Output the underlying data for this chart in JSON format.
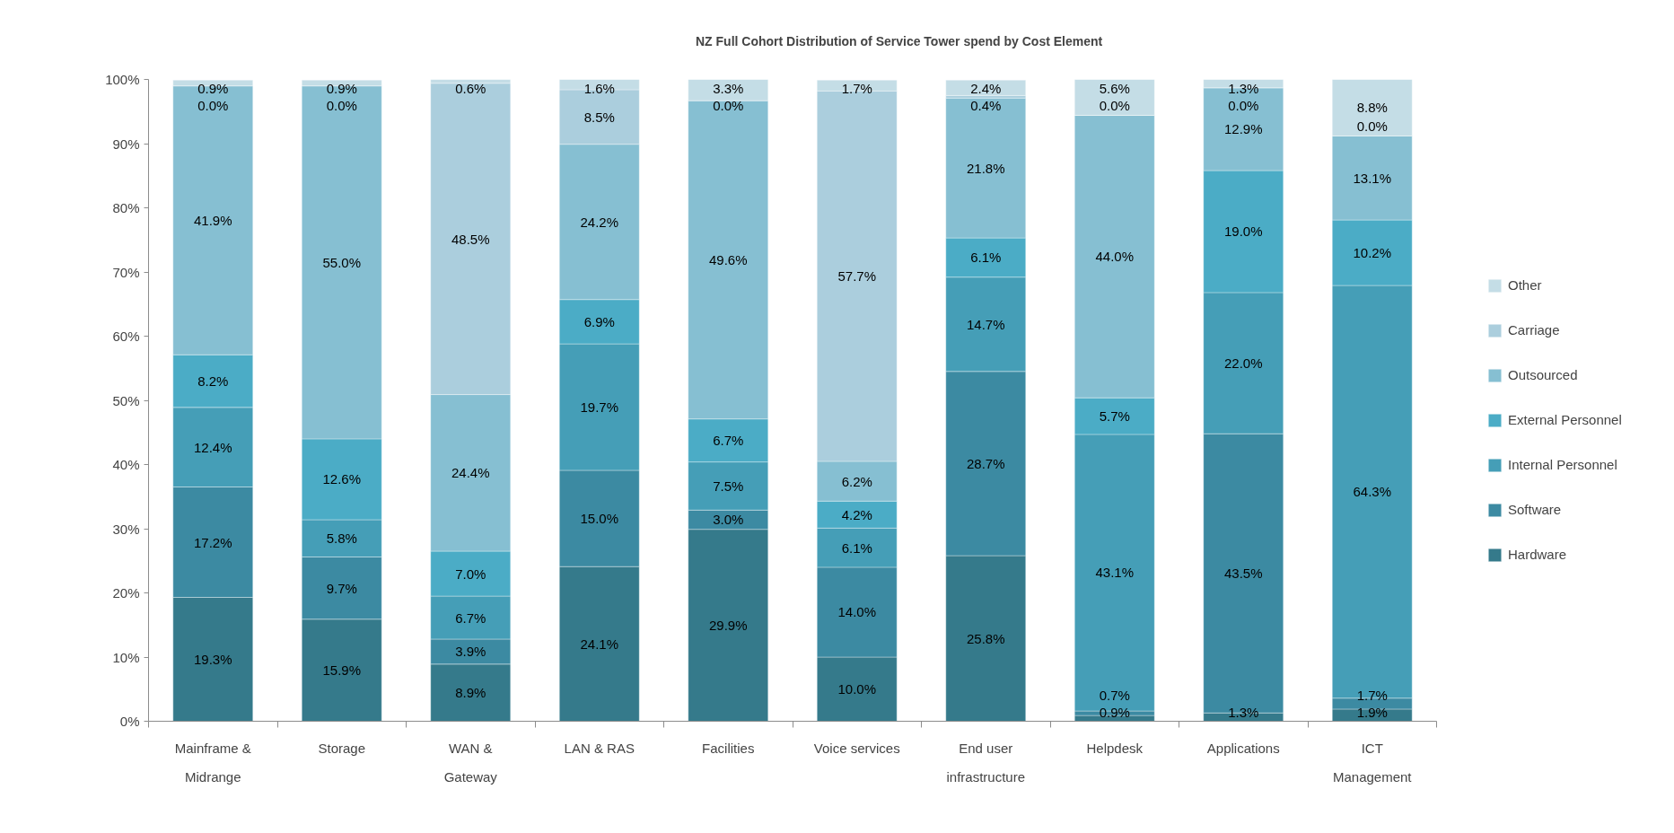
{
  "chart_data": {
    "type": "bar",
    "title": "NZ Full Cohort Distribution of Service  Tower spend  by Cost Element",
    "categories": [
      "Mainframe &\nMidrange",
      "Storage",
      "WAN &\nGateway",
      "LAN & RAS",
      "Facilities",
      "Voice services",
      "End user\ninfrastructure",
      "Helpdesk",
      "Applications",
      "ICT\nManagement"
    ],
    "stacked": true,
    "grid": false,
    "legend": "right",
    "ylim": [
      0,
      100
    ],
    "yticks": [
      {
        "value": 0,
        "label": "0%"
      },
      {
        "value": 10,
        "label": "10%"
      },
      {
        "value": 20,
        "label": "20%"
      },
      {
        "value": 30,
        "label": "30%"
      },
      {
        "value": 40,
        "label": "40%"
      },
      {
        "value": 50,
        "label": "50%"
      },
      {
        "value": 60,
        "label": "60%"
      },
      {
        "value": 70,
        "label": "70%"
      },
      {
        "value": 80,
        "label": "80%"
      },
      {
        "value": 90,
        "label": "90%"
      },
      {
        "value": 100,
        "label": "100%"
      }
    ],
    "series": [
      {
        "name": "Hardware",
        "color": "#357a8b",
        "values": [
          19.3,
          15.9,
          8.9,
          24.1,
          29.9,
          10.0,
          25.8,
          0.9,
          1.3,
          1.9
        ],
        "value_labels": [
          "19.3%",
          "15.9%",
          "8.9%",
          "24.1%",
          "29.9%",
          "10.0%",
          "25.8%",
          "0.9%",
          "1.3%",
          "1.9%"
        ]
      },
      {
        "name": "Software",
        "color": "#3c8aa2",
        "values": [
          17.2,
          9.7,
          3.9,
          15.0,
          3.0,
          14.0,
          28.7,
          0.7,
          43.5,
          1.7
        ],
        "value_labels": [
          "17.2%",
          "9.7%",
          "3.9%",
          "15.0%",
          "3.0%",
          "14.0%",
          "28.7%",
          "0.7%",
          "43.5%",
          "1.7%"
        ]
      },
      {
        "name": "Internal Personnel",
        "color": "#459eb7",
        "values": [
          12.4,
          5.8,
          6.7,
          19.7,
          7.5,
          6.1,
          14.7,
          43.1,
          22.0,
          64.3
        ],
        "value_labels": [
          "12.4%",
          "5.8%",
          "6.7%",
          "19.7%",
          "7.5%",
          "6.1%",
          "14.7%",
          "43.1%",
          "22.0%",
          "64.3%"
        ]
      },
      {
        "name": "External Personnel",
        "color": "#4bacc6",
        "values": [
          8.2,
          12.6,
          7.0,
          6.9,
          6.7,
          4.2,
          6.1,
          5.7,
          19.0,
          10.2
        ],
        "value_labels": [
          "8.2%",
          "12.6%",
          "7.0%",
          "6.9%",
          "6.7%",
          "4.2%",
          "6.1%",
          "5.7%",
          "19.0%",
          "10.2%"
        ]
      },
      {
        "name": "Outsourced",
        "color": "#86bfd2",
        "values": [
          41.9,
          55.0,
          24.4,
          24.2,
          49.6,
          6.2,
          21.8,
          44.0,
          12.9,
          13.1
        ],
        "value_labels": [
          "41.9%",
          "55.0%",
          "24.4%",
          "24.2%",
          "49.6%",
          "6.2%",
          "21.8%",
          "44.0%",
          "12.9%",
          "13.1%"
        ]
      },
      {
        "name": "Carriage",
        "color": "#abcedd",
        "values": [
          0.0,
          0.0,
          48.5,
          8.5,
          0.0,
          57.7,
          0.4,
          0.0,
          0.0,
          0.0
        ],
        "value_labels": [
          "0.0%",
          "0.0%",
          "48.5%",
          "8.5%",
          "0.0%",
          "57.7%",
          "0.4%",
          "0.0%",
          "0.0%",
          "0.0%"
        ]
      },
      {
        "name": "Other",
        "color": "#c4dde6",
        "values": [
          0.9,
          0.9,
          0.6,
          1.6,
          3.3,
          1.7,
          2.4,
          5.6,
          1.3,
          8.8
        ],
        "value_labels": [
          "0.9%",
          "0.9%",
          "0.6%",
          "1.6%",
          "3.3%",
          "1.7%",
          "2.4%",
          "5.6%",
          "1.3%",
          "8.8%"
        ]
      }
    ]
  }
}
